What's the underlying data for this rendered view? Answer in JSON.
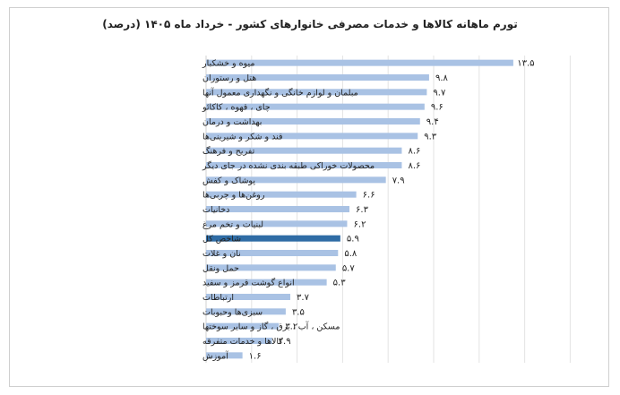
{
  "chart_data": {
    "type": "bar",
    "orientation": "horizontal",
    "title": "تورم ماهانه کالاها و خدمات مصرفی خانوارهای کشور - خرداد ماه ۱۴۰۵ (درصد)",
    "categories": [
      "میوه و خشکبار",
      "هتل و رستوران",
      "مبلمان و لوازم خانگی و نگهداری معمول آنها",
      "چای ، قهوه ، کاکائو",
      "بهداشت و درمان",
      "قند و شکر و شیرینی‌ها",
      "تفریح و فرهنگ",
      "محصولات خوراکی طبقه بندی نشده در جای دیگر",
      "پوشاک و کفش",
      "روغن‌ها و چربی‌ها",
      "دخانیات",
      "لبنیات و تخم مرغ",
      "شاخص کل",
      "نان و غلات",
      "حمل ونقل",
      "انواع گوشت قرمز و سفید",
      "ارتباطات",
      "سبزی‌ها وحبوبات",
      "مسکن ، آب ، برق ، گاز و سایر سوختها",
      "کالاها و خدمات متفرقه",
      "آموزش"
    ],
    "values": [
      13.5,
      9.8,
      9.7,
      9.6,
      9.4,
      9.3,
      8.6,
      8.6,
      7.9,
      6.6,
      6.3,
      6.2,
      5.9,
      5.8,
      5.7,
      5.3,
      3.7,
      3.5,
      3.2,
      2.9,
      1.6
    ],
    "value_labels": [
      "۱۳.۵",
      "۹.۸",
      "۹.۷",
      "۹.۶",
      "۹.۴",
      "۹.۳",
      "۸.۶",
      "۸.۶",
      "۷.۹",
      "۶.۶",
      "۶.۳",
      "۶.۲",
      "۵.۹",
      "۵.۸",
      "۵.۷",
      "۵.۳",
      "۳.۷",
      "۳.۵",
      "۳.۲",
      "۲.۹",
      "۱.۶"
    ],
    "highlight_category": "شاخص کل",
    "xlim": [
      0,
      16
    ],
    "grid": true,
    "colors": {
      "bar": "#a9c2e4",
      "highlight": "#2f6ca5",
      "grid": "#e3e3e3"
    }
  }
}
